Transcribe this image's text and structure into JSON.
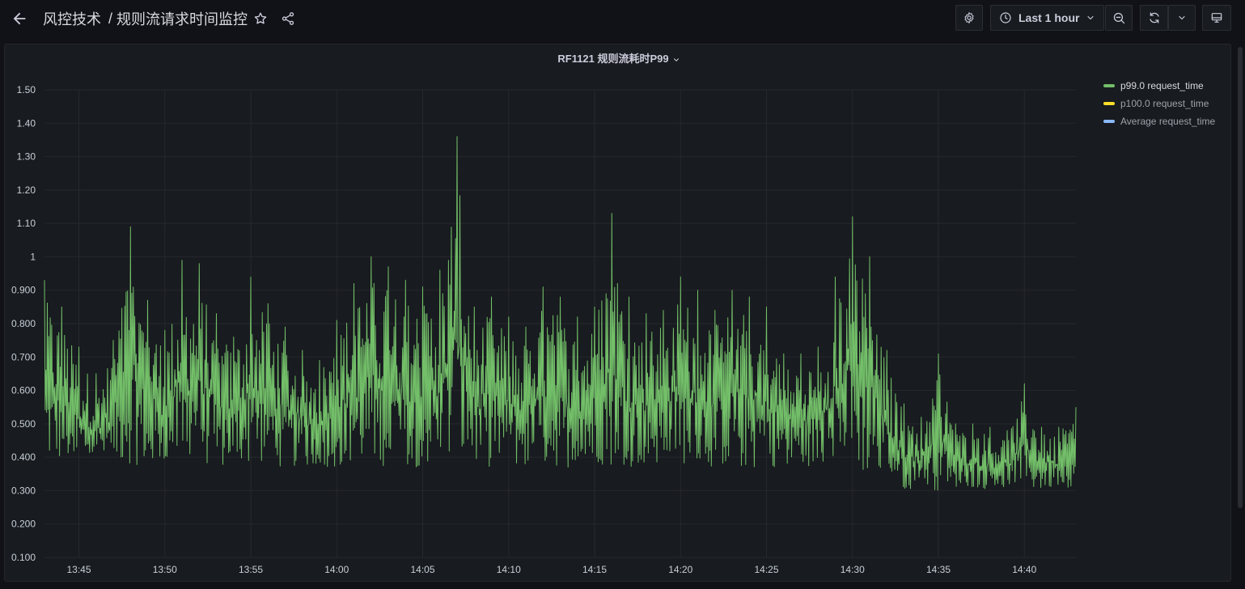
{
  "breadcrumb": {
    "folder": "风控技术",
    "separator": "/",
    "dashboard": "规则流请求时间监控"
  },
  "toolbar": {
    "time_range_label": "Last 1 hour"
  },
  "icons": {
    "back": "arrow-left-icon",
    "star": "star-icon",
    "share": "share-icon",
    "settings": "gear-icon",
    "clock": "clock-icon",
    "time_dropdown": "chevron-down-icon",
    "zoom_out": "zoom-out-icon",
    "refresh": "refresh-icon",
    "refresh_interval": "chevron-down-icon",
    "tv_mode": "monitor-icon"
  },
  "panel": {
    "title": "RF1121 规则流耗时P99"
  },
  "legend": [
    {
      "label": "p99.0 request_time",
      "color": "#73bf69"
    },
    {
      "label": "p100.0 request_time",
      "color": "#fade2a"
    },
    {
      "label": "Average request_time",
      "color": "#8ab8ff"
    }
  ],
  "chart_data": {
    "type": "line",
    "title": "RF1121 规则流耗时P99",
    "xlabel": "",
    "ylabel": "",
    "x_tick_labels": [
      "13:45",
      "13:50",
      "13:55",
      "14:00",
      "14:05",
      "14:10",
      "14:15",
      "14:20",
      "14:25",
      "14:30",
      "14:35",
      "14:40"
    ],
    "y_tick_labels": [
      "0.100",
      "0.200",
      "0.300",
      "0.400",
      "0.500",
      "0.600",
      "0.700",
      "0.800",
      "0.900",
      "1",
      "1.10",
      "1.20",
      "1.30",
      "1.40",
      "1.50"
    ],
    "xlim": [
      "13:43",
      "14:43"
    ],
    "ylim": [
      0.1,
      1.5
    ],
    "grid": true,
    "legend_position": "right",
    "series": [
      {
        "name": "p99.0 request_time",
        "color": "#73bf69",
        "x": [
          "13:43",
          "13:44",
          "13:45",
          "13:46",
          "13:47",
          "13:48",
          "13:49",
          "13:50",
          "13:51",
          "13:52",
          "13:53",
          "13:54",
          "13:55",
          "13:56",
          "13:57",
          "13:58",
          "13:59",
          "14:00",
          "14:01",
          "14:02",
          "14:03",
          "14:04",
          "14:05",
          "14:06",
          "14:07",
          "14:08",
          "14:09",
          "14:10",
          "14:11",
          "14:12",
          "14:13",
          "14:14",
          "14:15",
          "14:16",
          "14:17",
          "14:18",
          "14:19",
          "14:20",
          "14:21",
          "14:22",
          "14:23",
          "14:24",
          "14:25",
          "14:26",
          "14:27",
          "14:28",
          "14:29",
          "14:30",
          "14:31",
          "14:32",
          "14:33",
          "14:34",
          "14:35",
          "14:36",
          "14:37",
          "14:38",
          "14:39",
          "14:40",
          "14:41",
          "14:42",
          "14:43"
        ],
        "max": [
          0.93,
          0.85,
          0.73,
          0.65,
          0.75,
          1.09,
          0.87,
          0.78,
          0.99,
          0.98,
          0.83,
          0.76,
          0.94,
          0.86,
          0.79,
          0.72,
          0.69,
          0.81,
          0.92,
          1.0,
          0.97,
          0.93,
          0.91,
          0.96,
          1.36,
          0.85,
          0.88,
          0.82,
          0.79,
          0.91,
          0.88,
          0.82,
          0.85,
          1.13,
          0.88,
          0.83,
          0.84,
          0.94,
          0.9,
          0.84,
          0.9,
          0.88,
          0.85,
          0.71,
          0.71,
          0.73,
          0.94,
          1.12,
          1.0,
          0.72,
          0.56,
          0.52,
          0.71,
          0.5,
          0.5,
          0.49,
          0.48,
          0.62,
          0.49,
          0.49,
          0.55
        ],
        "min": [
          0.38,
          0.38,
          0.38,
          0.38,
          0.38,
          0.38,
          0.37,
          0.38,
          0.37,
          0.38,
          0.37,
          0.38,
          0.38,
          0.38,
          0.37,
          0.37,
          0.37,
          0.37,
          0.37,
          0.38,
          0.37,
          0.37,
          0.37,
          0.37,
          0.37,
          0.37,
          0.37,
          0.37,
          0.37,
          0.37,
          0.37,
          0.37,
          0.38,
          0.37,
          0.37,
          0.37,
          0.38,
          0.38,
          0.37,
          0.37,
          0.37,
          0.36,
          0.37,
          0.37,
          0.37,
          0.37,
          0.37,
          0.36,
          0.34,
          0.33,
          0.3,
          0.31,
          0.3,
          0.31,
          0.31,
          0.3,
          0.31,
          0.3,
          0.3,
          0.31,
          0.31
        ]
      },
      {
        "name": "p100.0 request_time",
        "color": "#fade2a",
        "x": [],
        "max": [],
        "min": []
      },
      {
        "name": "Average request_time",
        "color": "#8ab8ff",
        "x": [],
        "max": [],
        "min": []
      }
    ]
  }
}
